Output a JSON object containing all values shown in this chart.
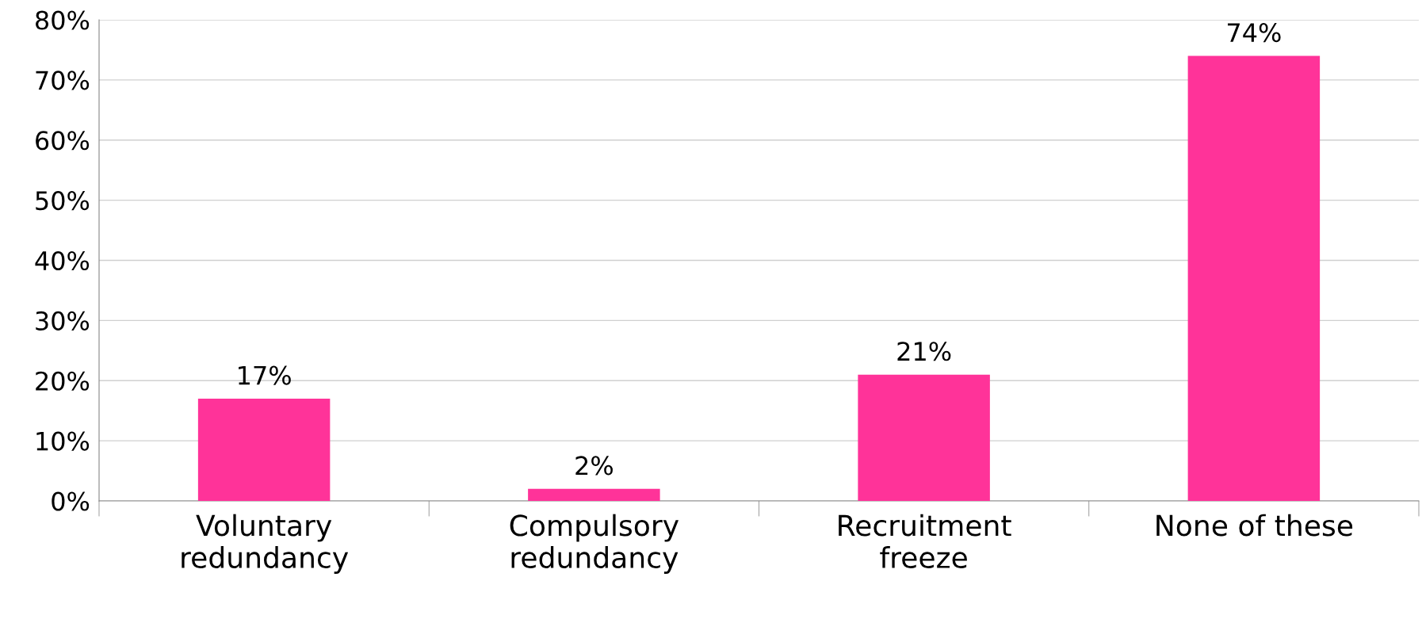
{
  "chart_data": {
    "type": "bar",
    "categories": [
      "Voluntary\nredundancy",
      "Compulsory\nredundancy",
      "Recruitment\nfreeze",
      "None of these"
    ],
    "values": [
      17,
      2,
      21,
      74
    ],
    "color": "#ff3399",
    "value_labels": [
      "17%",
      "2%",
      "21%",
      "74%"
    ],
    "ylim": [
      0,
      80
    ],
    "yticks": [
      {
        "value": 0,
        "label": "0%"
      },
      {
        "value": 10,
        "label": "10%"
      },
      {
        "value": 20,
        "label": "20%"
      },
      {
        "value": 30,
        "label": "30%"
      },
      {
        "value": 40,
        "label": "40%"
      },
      {
        "value": 50,
        "label": "50%"
      },
      {
        "value": 60,
        "label": "60%"
      },
      {
        "value": 70,
        "label": "70%"
      },
      {
        "value": 80,
        "label": "80%"
      }
    ],
    "grid": "y",
    "legend": false
  }
}
